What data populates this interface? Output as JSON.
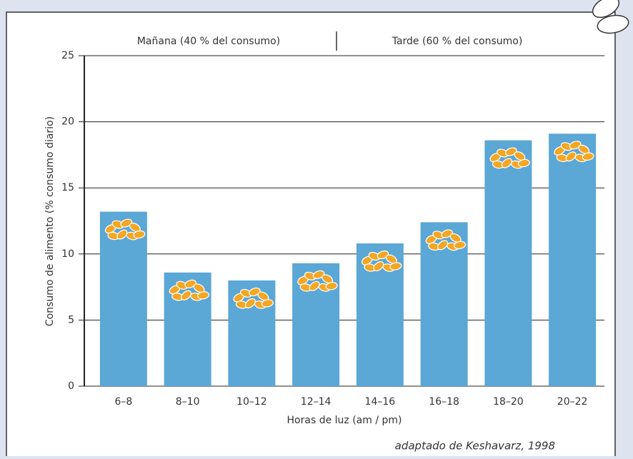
{
  "chart_data": {
    "type": "bar",
    "annotations": [
      "Mañana (40 % del consumo)",
      "Tarde (60 % del consumo)"
    ],
    "x_label": "Horas de luz (am / pm)",
    "y_label": "Consumo de alimento (% consumo diario)",
    "source": "adaptado de Keshavarz, 1998",
    "categories": [
      "6–8",
      "8–10",
      "10–12",
      "12–14",
      "14–16",
      "16–18",
      "18–20",
      "20–22"
    ],
    "values": [
      13.2,
      8.6,
      8.0,
      9.3,
      10.8,
      12.4,
      18.6,
      19.1
    ],
    "color": "#5ba7d5",
    "ylim": [
      0,
      25
    ],
    "yticks": [
      0,
      5,
      10,
      15,
      20,
      25
    ],
    "grid": true
  }
}
